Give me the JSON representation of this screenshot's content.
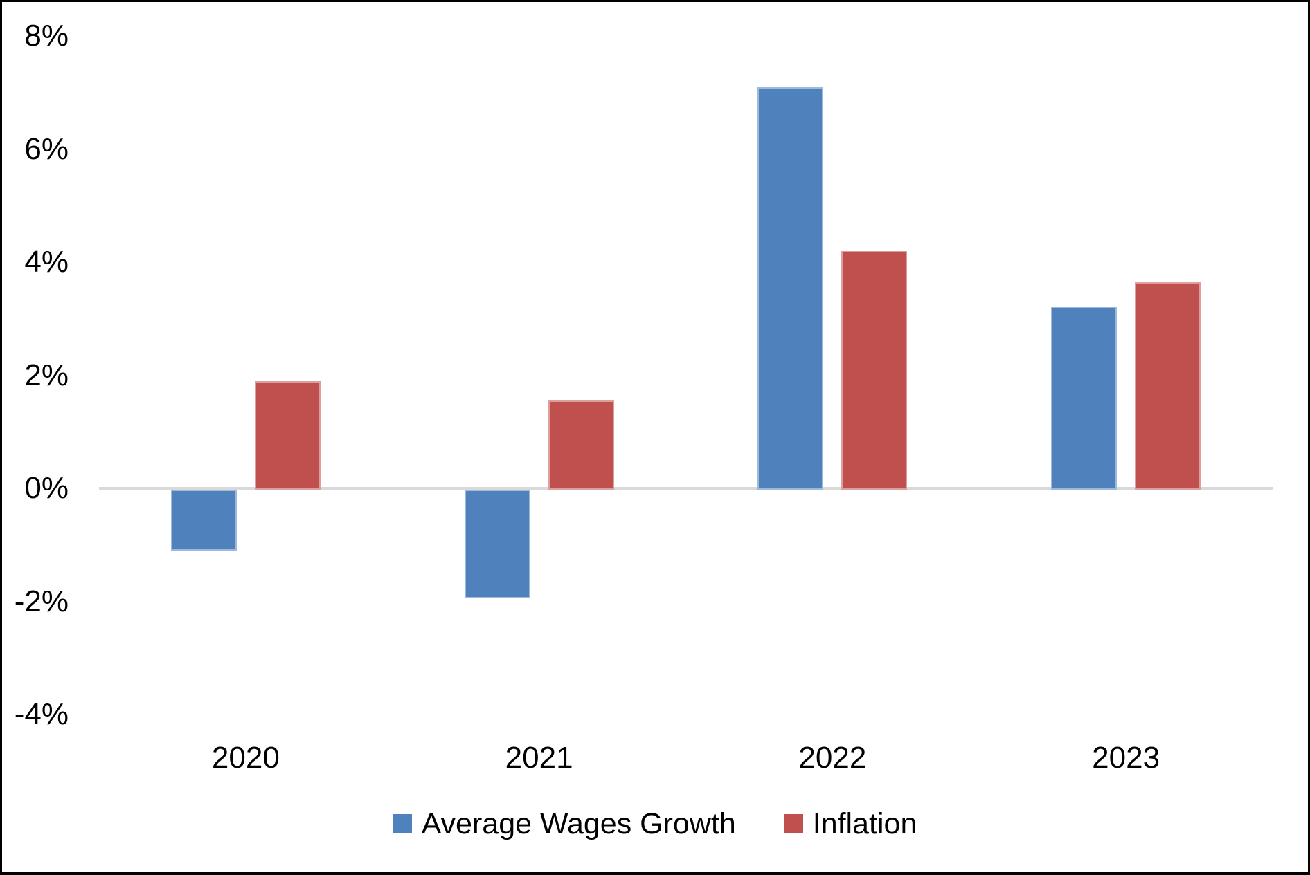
{
  "chart_data": {
    "type": "bar",
    "title": "",
    "xlabel": "",
    "ylabel": "",
    "categories": [
      "2020",
      "2021",
      "2022",
      "2023"
    ],
    "series": [
      {
        "name": "Average Wages Growth",
        "color": "#4F81BD",
        "values": [
          -1.1,
          -1.95,
          7.1,
          3.2
        ]
      },
      {
        "name": "Inflation",
        "color": "#C0504D",
        "values": [
          1.9,
          1.55,
          4.2,
          3.65
        ]
      }
    ],
    "ylim": [
      -4,
      8
    ],
    "ytick_step": 2,
    "yticks": [
      "8%",
      "6%",
      "4%",
      "2%",
      "0%",
      "-2%",
      "-4%"
    ],
    "grid": false,
    "legend_position": "bottom",
    "colors": {
      "axis_line": "#D9D9D9",
      "text": "#000000",
      "background": "#FFFFFF",
      "border": "#000000"
    }
  }
}
